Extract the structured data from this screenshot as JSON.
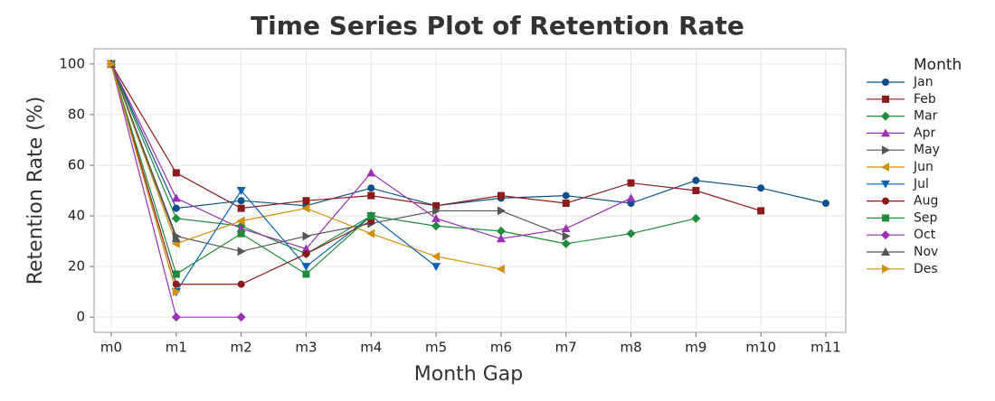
{
  "chart_data": {
    "type": "line",
    "title": "Time Series Plot of Retention Rate",
    "x_label": "Month Gap",
    "y_label": "Retention Rate (%)",
    "legend_title": "Month",
    "legend_position": "right",
    "grid": true,
    "categories": [
      "m0",
      "m1",
      "m2",
      "m3",
      "m4",
      "m5",
      "m6",
      "m7",
      "m8",
      "m9",
      "m10",
      "m11"
    ],
    "ylim": [
      -6,
      106
    ],
    "yticks": [
      0,
      20,
      40,
      60,
      80,
      100
    ],
    "series": [
      {
        "name": "Jan",
        "color": "#0b4f8a",
        "marker": "circle",
        "values": [
          100,
          43,
          46,
          44,
          51,
          44,
          47,
          48,
          45,
          54,
          51,
          45
        ]
      },
      {
        "name": "Feb",
        "color": "#8b1a1a",
        "marker": "square",
        "values": [
          100,
          57,
          43,
          46,
          48,
          44,
          48,
          45,
          53,
          50,
          42,
          null
        ]
      },
      {
        "name": "Mar",
        "color": "#1e8c3a",
        "marker": "diamond",
        "values": [
          100,
          39,
          36,
          25,
          40,
          36,
          34,
          29,
          33,
          39,
          null,
          null
        ]
      },
      {
        "name": "Apr",
        "color": "#9b2fb5",
        "marker": "triangle-up",
        "values": [
          100,
          47,
          35,
          27,
          57,
          39,
          31,
          35,
          47,
          null,
          null,
          null
        ]
      },
      {
        "name": "May",
        "color": "#555555",
        "marker": "triangle-right",
        "values": [
          100,
          32,
          26,
          32,
          37,
          42,
          42,
          32,
          null,
          null,
          null,
          null
        ]
      },
      {
        "name": "Jun",
        "color": "#d4900a",
        "marker": "triangle-left",
        "values": [
          100,
          29,
          38,
          43,
          33,
          24,
          19,
          null,
          null,
          null,
          null,
          null
        ]
      },
      {
        "name": "Jul",
        "color": "#0b62b0",
        "marker": "triangle-down",
        "values": [
          100,
          10,
          50,
          20,
          40,
          20,
          null,
          null,
          null,
          null,
          null,
          null
        ]
      },
      {
        "name": "Aug",
        "color": "#8b1a1a",
        "marker": "circle",
        "values": [
          100,
          13,
          13,
          25,
          38,
          null,
          null,
          null,
          null,
          null,
          null,
          null
        ]
      },
      {
        "name": "Sep",
        "color": "#1e8c3a",
        "marker": "square",
        "values": [
          100,
          17,
          33,
          17,
          40,
          null,
          null,
          null,
          null,
          null,
          null,
          null
        ]
      },
      {
        "name": "Oct",
        "color": "#9b2fb5",
        "marker": "diamond",
        "values": [
          100,
          0,
          0,
          null,
          null,
          null,
          null,
          null,
          null,
          null,
          null,
          null
        ]
      },
      {
        "name": "Nov",
        "color": "#555555",
        "marker": "triangle-up",
        "values": [
          100,
          31,
          null,
          null,
          null,
          null,
          null,
          null,
          null,
          null,
          null,
          null
        ]
      },
      {
        "name": "Des",
        "color": "#d4900a",
        "marker": "triangle-right",
        "values": [
          100,
          10,
          null,
          null,
          null,
          null,
          null,
          null,
          null,
          null,
          null,
          null
        ]
      }
    ]
  }
}
